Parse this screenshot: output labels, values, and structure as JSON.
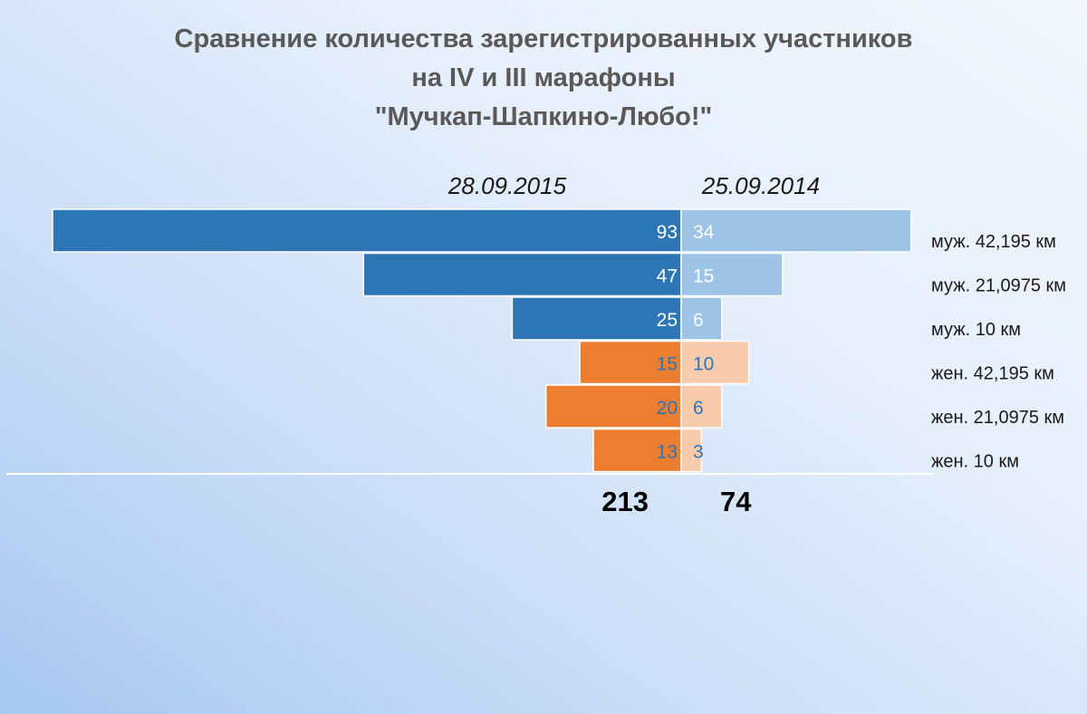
{
  "title": {
    "line1": "Сравнение количества зарегистрированных участников",
    "line2": "на IV и III марафоны",
    "line3": "\"Мучкап-Шапкино-Любо!\""
  },
  "chart_data": {
    "type": "bar",
    "orientation": "horizontal-pyramid",
    "categories": [
      "муж. 42,195 км",
      "муж. 21,0975 км",
      "муж. 10 км",
      "жен. 42,195 км",
      "жен. 21,0975 км",
      "жен. 10 км"
    ],
    "series": [
      {
        "name": "28.09.2015",
        "side": "left",
        "values": [
          93,
          47,
          25,
          15,
          20,
          13
        ],
        "total": 213,
        "colors": [
          "#2e75b6",
          "#2e75b6",
          "#2e75b6",
          "#ed7d31",
          "#ed7d31",
          "#ed7d31"
        ],
        "label_colors": [
          "#ffffff",
          "#ffffff",
          "#ffffff",
          "#2e75b6",
          "#2e75b6",
          "#2e75b6"
        ]
      },
      {
        "name": "25.09.2014",
        "side": "right",
        "values": [
          34,
          15,
          6,
          10,
          6,
          3
        ],
        "total": 74,
        "colors": [
          "#9dc3e6",
          "#9dc3e6",
          "#9dc3e6",
          "#f8cbad",
          "#f8cbad",
          "#f8cbad"
        ],
        "label_colors": [
          "#ffffff",
          "#ffffff",
          "#ffffff",
          "#2e75b6",
          "#2e75b6",
          "#2e75b6"
        ]
      }
    ],
    "data_labels": true,
    "legend": "none",
    "grid": false
  }
}
